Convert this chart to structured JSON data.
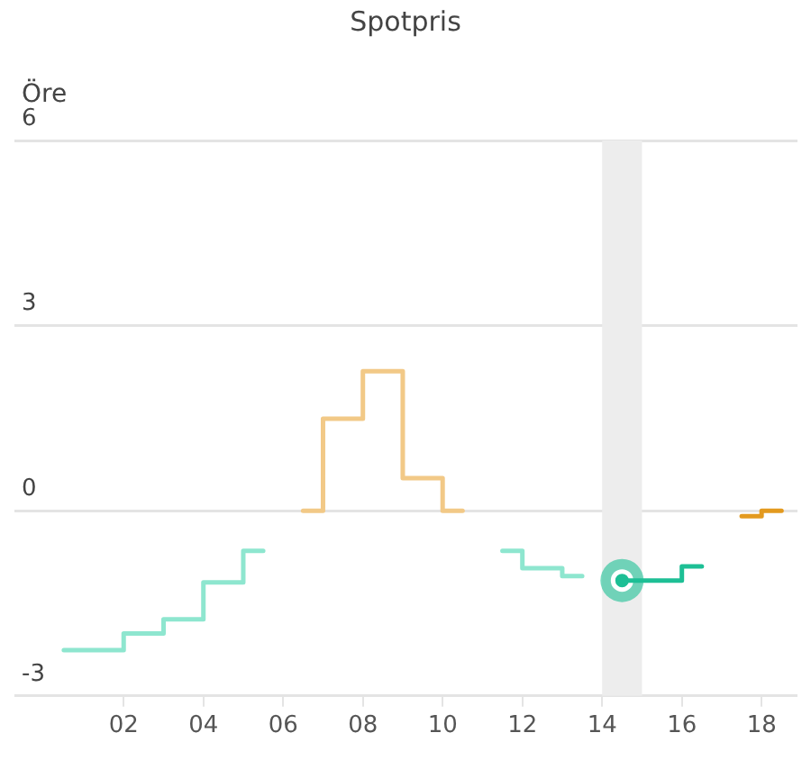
{
  "chart_data": {
    "type": "step",
    "title": "Spotpris",
    "ylabel": "Öre",
    "x": [
      0.5,
      1.5,
      2.5,
      3.5,
      4.5,
      5.5,
      6.5,
      7.5,
      8.5,
      9.5,
      10.5,
      11.5,
      12.5,
      13.5,
      14.5,
      15.5,
      16.5,
      17.5,
      18.5
    ],
    "series": [
      {
        "color": "#8ee6cf",
        "values": [
          -2.26,
          -2.26,
          -1.99,
          -1.76,
          -1.16,
          -0.65,
          null,
          null,
          null,
          null,
          null,
          -0.65,
          -0.93,
          -1.06,
          null,
          null,
          null,
          null,
          null
        ]
      },
      {
        "color": "#f2c987",
        "values": [
          null,
          null,
          null,
          null,
          null,
          null,
          0,
          1.49,
          2.26,
          0.53,
          0,
          null,
          null,
          null,
          null,
          null,
          null,
          null,
          null
        ]
      },
      {
        "color": "#1dbf95",
        "values": [
          null,
          null,
          null,
          null,
          null,
          null,
          null,
          null,
          null,
          null,
          null,
          null,
          null,
          null,
          -1.13,
          -1.13,
          -0.9,
          null,
          null
        ]
      },
      {
        "color": "#e39a1f",
        "values": [
          null,
          null,
          null,
          null,
          null,
          null,
          null,
          null,
          null,
          null,
          null,
          null,
          null,
          null,
          null,
          null,
          null,
          -0.09,
          0
        ]
      },
      {
        "type": "scatter",
        "x": [
          14.5
        ],
        "values": [
          -1.13
        ],
        "color": "#1dbf95"
      }
    ],
    "bands": [
      {
        "axis": "x",
        "from": 14,
        "to": 15,
        "color": "#ededed"
      }
    ],
    "xlim": [
      -0.74,
      18.9
    ],
    "xticks": [
      {
        "value": 2,
        "label": "02"
      },
      {
        "value": 4,
        "label": "04"
      },
      {
        "value": 6,
        "label": "06"
      },
      {
        "value": 8,
        "label": "08"
      },
      {
        "value": 10,
        "label": "10"
      },
      {
        "value": 12,
        "label": "12"
      },
      {
        "value": 14,
        "label": "14"
      },
      {
        "value": 16,
        "label": "16"
      },
      {
        "value": 18,
        "label": "18"
      }
    ],
    "ylim": [
      -3,
      6
    ],
    "yticks": [
      -3,
      0,
      3,
      6
    ],
    "grid": "y",
    "legend": false
  }
}
